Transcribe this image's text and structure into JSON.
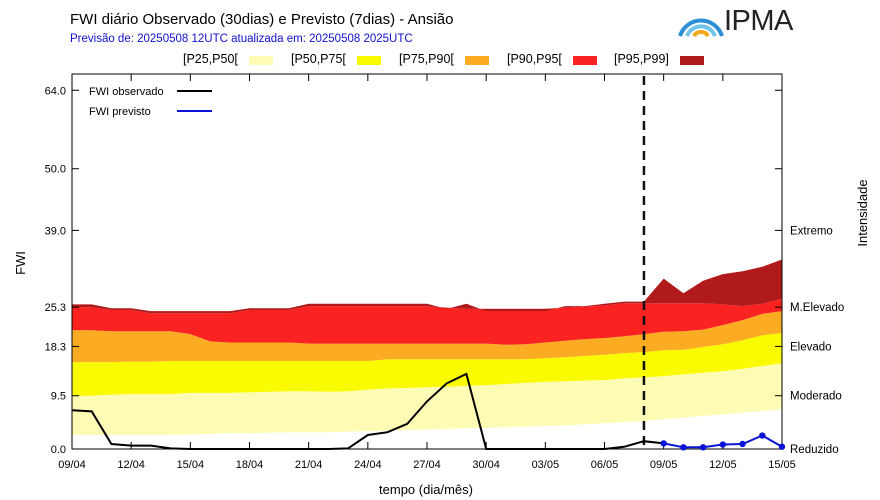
{
  "header": {
    "title": "FWI diário Observado (30dias) e Previsto (7dias) - Ansião",
    "subtitle": "Previsão de: 20250508 12UTC   atualizada em: 20250508 2025UTC",
    "logo_text": "IPMA"
  },
  "colors": {
    "p25_50": "#fefcb4",
    "p50_75": "#fafa00",
    "p75_90": "#fbac22",
    "p90_95": "#fb2222",
    "p95_99": "#b01a1a",
    "observed": "#000000",
    "forecast": "#0a14d8",
    "logo_arc_1": "#2a8fd6",
    "logo_arc_2": "#6fc3e8",
    "logo_arc_3": "#f2a81d"
  },
  "legend_bands": [
    {
      "label": "[P25,P50[",
      "color": "#fefcb4"
    },
    {
      "label": "[P50,P75[",
      "color": "#fafa00"
    },
    {
      "label": "[P75,P90[",
      "color": "#fbac22"
    },
    {
      "label": "[P90,P95[",
      "color": "#fb2222"
    },
    {
      "label": "[P95,P99]",
      "color": "#b01a1a"
    }
  ],
  "chart_data": {
    "type": "area",
    "xlabel": "tempo (dia/mês)",
    "ylabel": "FWI",
    "y2label": "Intensidade",
    "ytick_values": [
      0.0,
      9.5,
      18.3,
      25.3,
      39.0,
      50.0,
      64.0
    ],
    "ytick_labels": [
      "0.0",
      "9.5",
      "18.3",
      "25.3",
      "39.0",
      "50.0",
      "64.0"
    ],
    "intensity_levels": [
      {
        "label": "Reduzido",
        "value": 0.0
      },
      {
        "label": "Moderado",
        "value": 9.5
      },
      {
        "label": "Elevado",
        "value": 18.3
      },
      {
        "label": "M.Elevado",
        "value": 25.3
      },
      {
        "label": "Extremo",
        "value": 39.0
      }
    ],
    "x_days": 36,
    "xtick_labels": [
      "09/04",
      "12/04",
      "15/04",
      "18/04",
      "21/04",
      "24/04",
      "27/04",
      "30/04",
      "03/05",
      "06/05",
      "09/05",
      "12/05",
      "15/05"
    ],
    "forecast_start_day": 29,
    "percentiles": {
      "p25": [
        2.5,
        2.5,
        2.5,
        2.5,
        2.5,
        2.5,
        2.6,
        2.7,
        2.8,
        2.8,
        2.9,
        3.0,
        3.0,
        3.0,
        3.1,
        3.2,
        3.3,
        3.4,
        3.5,
        3.6,
        3.7,
        3.8,
        3.9,
        4.0,
        4.1,
        4.2,
        4.4,
        4.6,
        4.8,
        5.0,
        5.3,
        5.6,
        5.9,
        6.2,
        6.5,
        6.8,
        7.1
      ],
      "p50": [
        9.5,
        9.5,
        9.7,
        9.8,
        9.8,
        9.8,
        10.0,
        10.0,
        10.0,
        10.1,
        10.2,
        10.3,
        10.3,
        10.2,
        10.3,
        10.6,
        10.8,
        10.9,
        11.0,
        11.1,
        11.3,
        11.4,
        11.6,
        11.8,
        12.0,
        12.1,
        12.2,
        12.3,
        12.6,
        12.8,
        13.0,
        13.3,
        13.6,
        13.9,
        14.3,
        14.8,
        15.3
      ],
      "p75": [
        15.5,
        15.5,
        15.5,
        15.6,
        15.6,
        15.7,
        15.7,
        15.7,
        15.7,
        15.7,
        15.7,
        15.7,
        15.7,
        15.7,
        15.7,
        15.7,
        16.0,
        16.0,
        16.0,
        16.0,
        16.0,
        16.0,
        16.0,
        16.0,
        16.2,
        16.4,
        16.6,
        16.8,
        17.1,
        17.3,
        17.6,
        17.7,
        18.2,
        18.7,
        19.4,
        20.3,
        20.7
      ],
      "p90": [
        21.2,
        21.2,
        21.0,
        21.0,
        21.0,
        21.0,
        20.5,
        19.2,
        19.0,
        19.0,
        19.0,
        19.0,
        18.8,
        18.8,
        18.8,
        18.8,
        18.8,
        18.8,
        18.8,
        18.8,
        18.8,
        18.8,
        18.6,
        18.7,
        19.0,
        19.3,
        19.6,
        19.8,
        20.1,
        20.5,
        20.9,
        21.0,
        21.3,
        22.1,
        23.0,
        24.1,
        24.6
      ],
      "p95": [
        25.3,
        25.3,
        24.8,
        24.8,
        24.2,
        24.2,
        24.2,
        24.2,
        24.2,
        24.8,
        24.8,
        24.8,
        25.5,
        25.5,
        25.5,
        25.5,
        25.5,
        25.5,
        25.5,
        25.2,
        25.0,
        25.0,
        25.0,
        25.0,
        25.0,
        25.2,
        25.4,
        25.6,
        26.0,
        26.0,
        26.0,
        26.0,
        26.0,
        25.8,
        25.5,
        25.9,
        26.8
      ],
      "p99": [
        25.8,
        25.8,
        25.1,
        25.1,
        24.6,
        24.6,
        24.6,
        24.6,
        24.6,
        25.1,
        25.1,
        25.1,
        25.9,
        25.9,
        25.9,
        25.9,
        25.9,
        25.9,
        25.9,
        25.0,
        25.9,
        24.6,
        24.6,
        24.6,
        24.6,
        25.5,
        25.5,
        25.9,
        26.3,
        26.3,
        30.4,
        27.8,
        30.0,
        31.2,
        31.7,
        32.5,
        33.8
      ]
    },
    "observed": {
      "x": [
        0,
        1,
        2,
        3,
        4,
        5,
        6,
        7,
        8,
        9,
        10,
        11,
        12,
        13,
        14,
        15,
        16,
        17,
        18,
        19,
        20,
        21,
        22,
        23,
        24,
        25,
        26,
        27,
        28,
        29,
        30
      ],
      "y": [
        6.9,
        6.7,
        0.9,
        0.6,
        0.6,
        0.1,
        0.0,
        0.0,
        0.0,
        0.0,
        0.0,
        0.0,
        0.0,
        0.0,
        0.1,
        2.5,
        3.0,
        4.5,
        8.5,
        11.7,
        13.4,
        0.0,
        0.0,
        0.0,
        0.0,
        0.0,
        0.0,
        0.0,
        0.4,
        1.4,
        1.0
      ]
    },
    "forecast": {
      "x": [
        30,
        31,
        32,
        33,
        34,
        35,
        36
      ],
      "y": [
        1.0,
        0.3,
        0.3,
        0.8,
        0.9,
        2.4,
        0.4
      ]
    },
    "legend_lines": [
      {
        "label": "FWI observado",
        "color": "#000000"
      },
      {
        "label": "FWI previsto",
        "color": "#0a14d8"
      }
    ]
  }
}
